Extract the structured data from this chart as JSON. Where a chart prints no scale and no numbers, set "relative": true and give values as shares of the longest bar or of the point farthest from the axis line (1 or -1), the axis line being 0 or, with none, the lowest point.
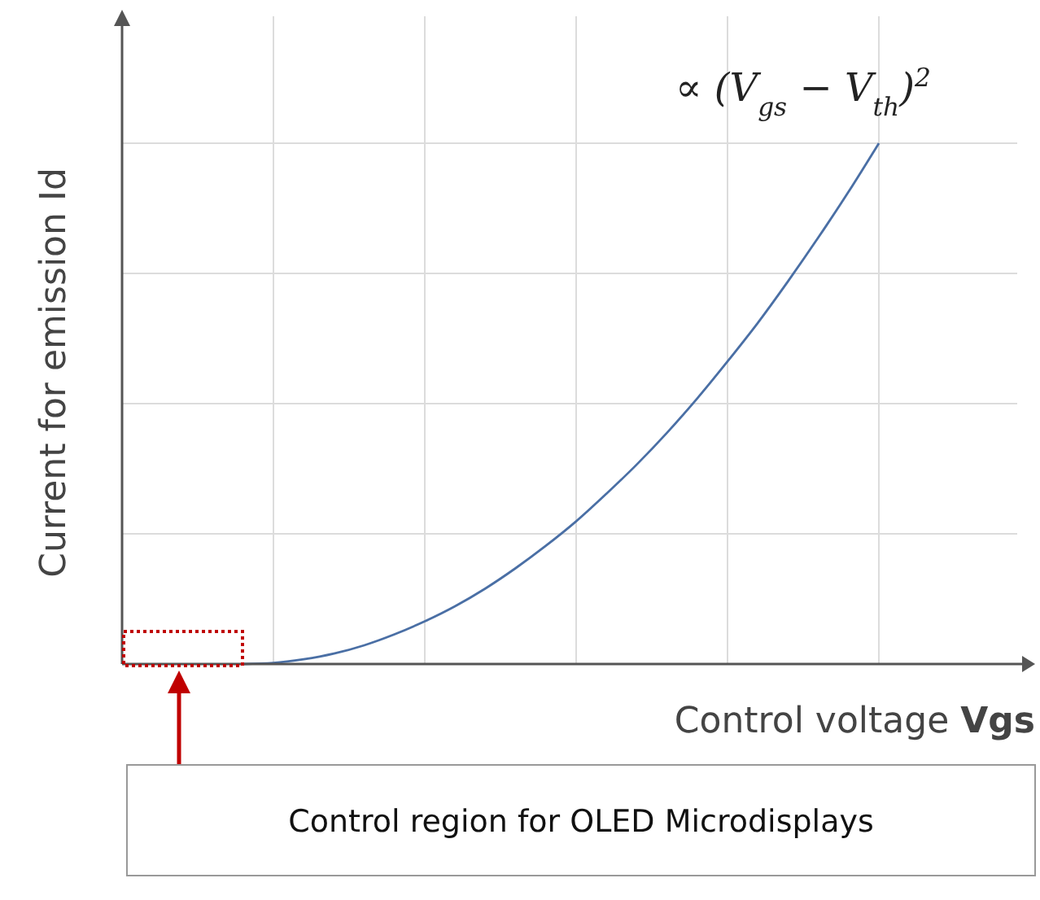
{
  "chart_data": {
    "type": "line",
    "relative": true,
    "xlabel": "Control voltage Vgs",
    "ylabel": "Current for emission Id",
    "categories": [
      null,
      null,
      null,
      null,
      null,
      null,
      null,
      null,
      null,
      null,
      null,
      null,
      null,
      null,
      null,
      null,
      null,
      null,
      null,
      null,
      null,
      null,
      null,
      null,
      null,
      null
    ],
    "series": [
      {
        "color": "#4a6fa5",
        "values": [
          null,
          null,
          null,
          null,
          0,
          0.002,
          0.009,
          0.02,
          0.036,
          0.057,
          0.082,
          0.111,
          0.145,
          0.184,
          0.227,
          0.274,
          0.327,
          0.383,
          0.444,
          0.51,
          0.581,
          0.655,
          0.735,
          0.819,
          0.907,
          1
        ]
      }
    ],
    "grid": true,
    "marker": "none",
    "line_style": "solid",
    "annotations": [
      "∝ (V$_{gs}$ − V$_{th}$)$^{2}$",
      "Control region for OLED Microdisplays"
    ]
  }
}
